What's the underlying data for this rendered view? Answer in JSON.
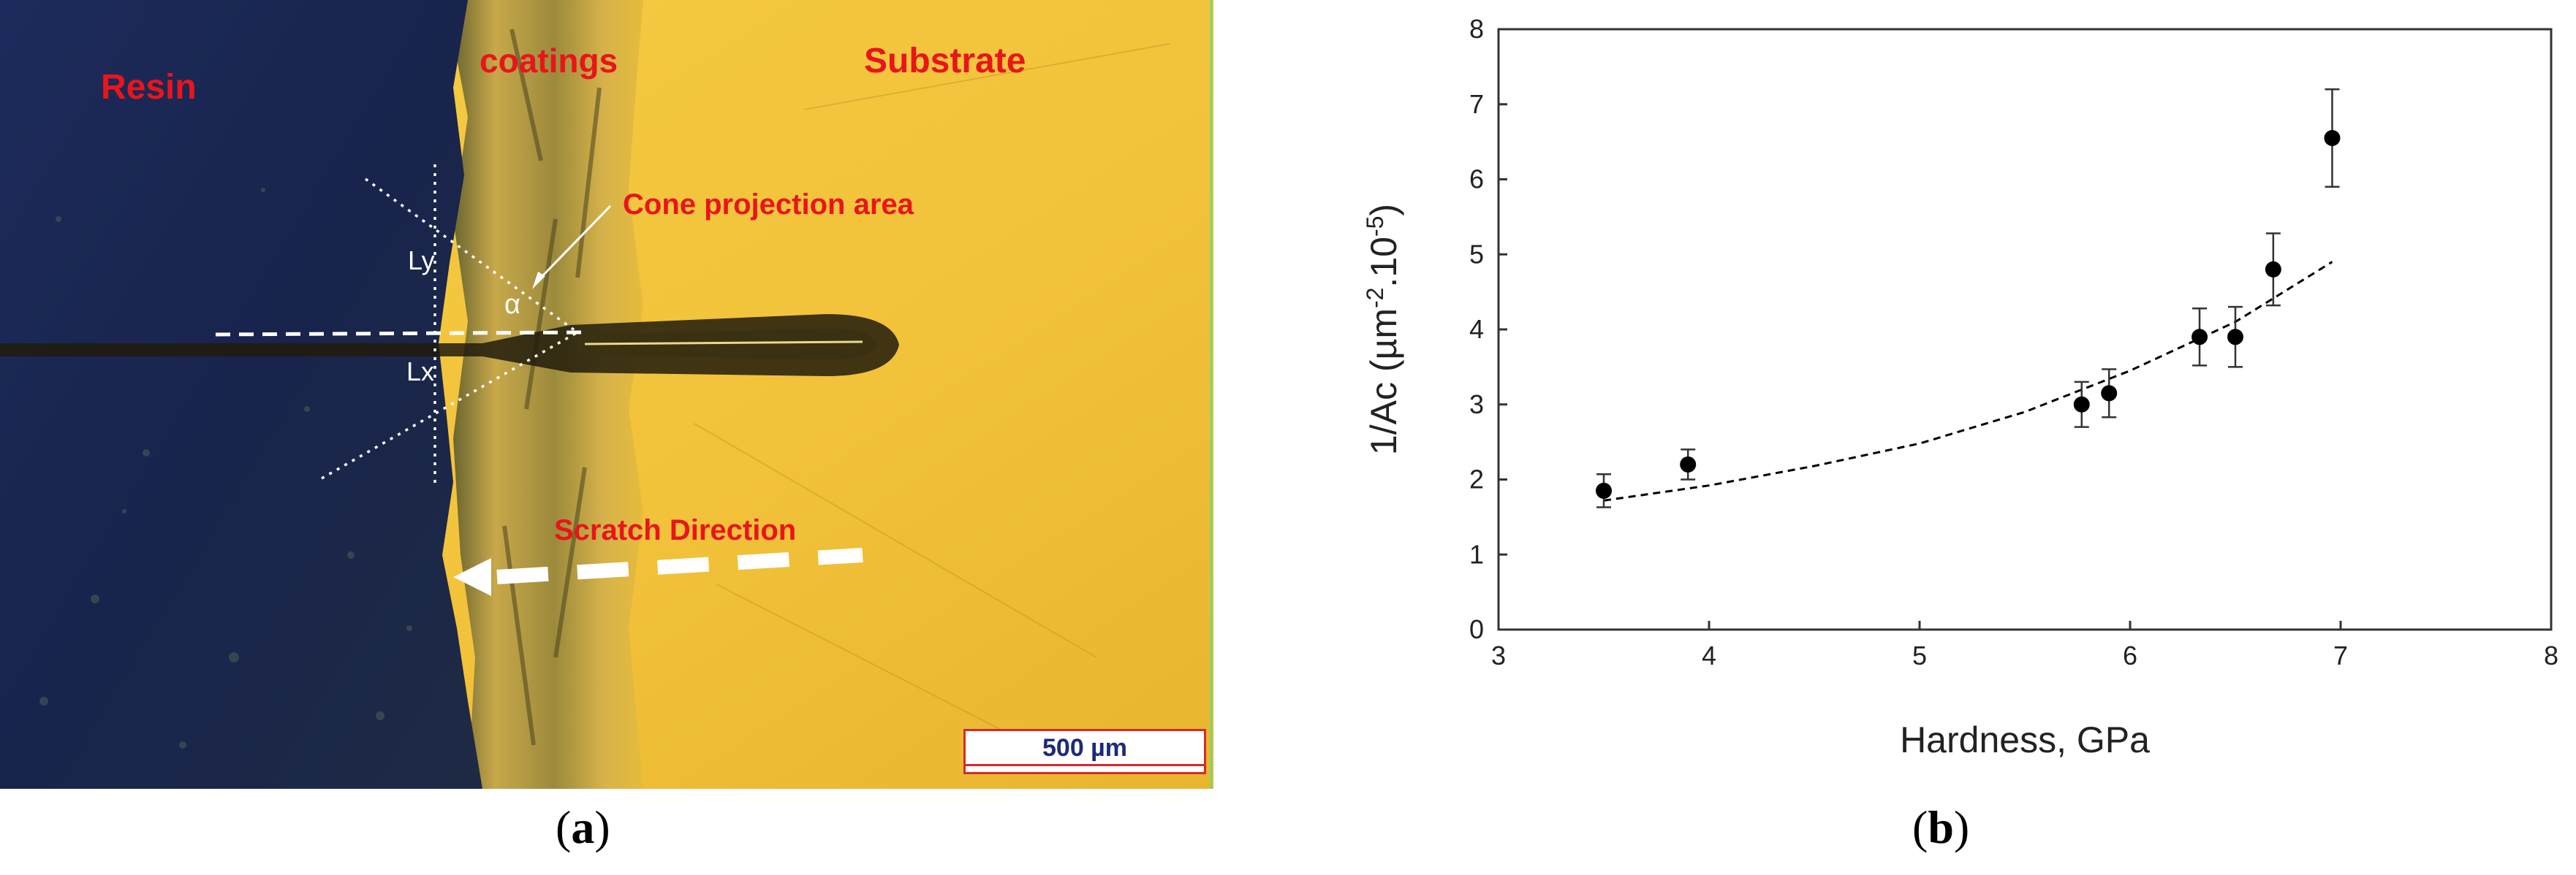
{
  "panel_a": {
    "labels": {
      "resin": "Resin",
      "coatings": "coatings",
      "substrate": "Substrate",
      "cone": "Cone projection area",
      "scratch": "Scratch Direction",
      "ly": "Ly",
      "alpha": "α",
      "lx": "Lx"
    },
    "scale_bar": "500 µm",
    "caption_letter": "a",
    "colors": {
      "resin": "#1c2a55",
      "coating": "#c9a646",
      "substrate": "#f2c53d",
      "label": "#e8151b"
    }
  },
  "panel_b": {
    "caption_letter": "b"
  },
  "chart_data": {
    "type": "scatter",
    "xlabel": "Hardness, GPa",
    "ylabel_main": "1/Ac (µm",
    "ylabel_sup": "-2",
    "ylabel_end": ".10",
    "ylabel_sup2": "-5",
    "ylabel_close": ")",
    "xlim": [
      3,
      8
    ],
    "ylim": [
      0,
      8
    ],
    "xticks": [
      3,
      4,
      5,
      6,
      7,
      8
    ],
    "yticks": [
      0,
      1,
      2,
      3,
      4,
      5,
      6,
      7,
      8
    ],
    "grid": false,
    "series": [
      {
        "x": [
          3.5,
          3.9,
          5.77,
          5.9,
          6.33,
          6.5,
          6.68,
          6.96
        ],
        "y": [
          1.85,
          2.2,
          3.0,
          3.15,
          3.9,
          3.9,
          4.8,
          6.55
        ],
        "yerr": [
          0.22,
          0.2,
          0.3,
          0.32,
          0.38,
          0.4,
          0.48,
          0.65
        ]
      }
    ],
    "trendline": {
      "style": "dashed",
      "x": [
        3.5,
        4.0,
        4.5,
        5.0,
        5.5,
        6.0,
        6.5,
        6.96
      ],
      "y": [
        1.72,
        1.92,
        2.18,
        2.48,
        2.9,
        3.45,
        4.1,
        4.9
      ]
    },
    "colors": {
      "marker": "#000000",
      "axis": "#333333"
    }
  }
}
